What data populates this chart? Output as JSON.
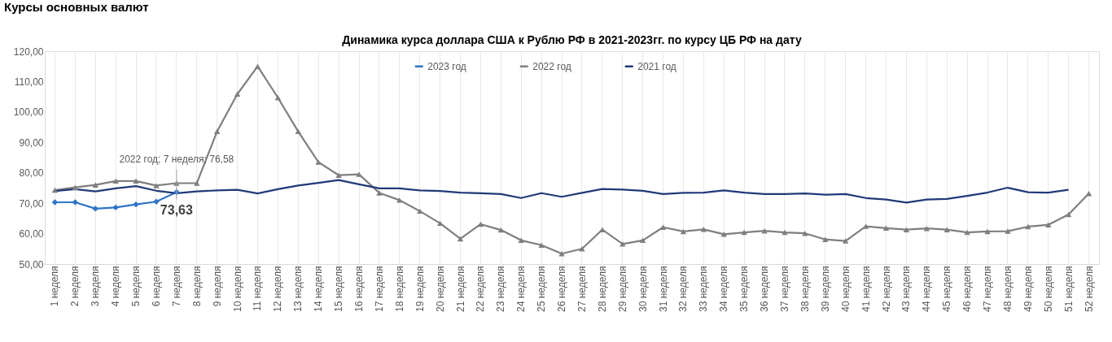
{
  "chart_data": {
    "type": "line",
    "title": "Динамика курса доллара США к Рублю РФ в 2021-2023гг. по курсу ЦБ РФ на дату",
    "annotations": [
      "Курсы основных валют",
      {
        "text": "2022 год; 7 неделя; 76,58",
        "x": "7 неделя",
        "y": 76.58
      }
    ],
    "categories": [
      "1 неделя",
      "2 неделя",
      "3 неделя",
      "4 неделя",
      "5 неделя",
      "6 неделя",
      "7 неделя",
      "8 неделя",
      "9 неделя",
      "10 неделя",
      "11 неделя",
      "12 неделя",
      "13 неделя",
      "14 неделя",
      "15 неделя",
      "16 неделя",
      "17 неделя",
      "18 неделя",
      "19 неделя",
      "20 неделя",
      "21 неделя",
      "22 неделя",
      "23 неделя",
      "24 неделя",
      "25 неделя",
      "26 неделя",
      "27 неделя",
      "28 неделя",
      "29 неделя",
      "30 неделя",
      "31 неделя",
      "32 неделя",
      "33 неделя",
      "34 неделя",
      "35 неделя",
      "36 неделя",
      "37 неделя",
      "38 неделя",
      "39 неделя",
      "40 неделя",
      "41 неделя",
      "42 неделя",
      "43 неделя",
      "44 неделя",
      "45 неделя",
      "46 неделя",
      "47 неделя",
      "48 неделя",
      "49 неделя",
      "50 неделя",
      "51 неделя",
      "52 неделя"
    ],
    "series": [
      {
        "name": "2023 год",
        "color": "#2e75c6",
        "marker": "diamond",
        "values": [
          70.3,
          70.3,
          68.2,
          68.6,
          69.6,
          70.5,
          73.63,
          null,
          null,
          null,
          null,
          null,
          null,
          null,
          null,
          null,
          null,
          null,
          null,
          null,
          null,
          null,
          null,
          null,
          null,
          null,
          null,
          null,
          null,
          null,
          null,
          null,
          null,
          null,
          null,
          null,
          null,
          null,
          null,
          null,
          null,
          null,
          null,
          null,
          null,
          null,
          null,
          null,
          null,
          null,
          null,
          null
        ],
        "value_labels": [
          null,
          null,
          null,
          null,
          null,
          null,
          "73,63",
          null,
          null,
          null,
          null,
          null,
          null,
          null,
          null,
          null,
          null,
          null,
          null,
          null,
          null,
          null,
          null,
          null,
          null,
          null,
          null,
          null,
          null,
          null,
          null,
          null,
          null,
          null,
          null,
          null,
          null,
          null,
          null,
          null,
          null,
          null,
          null,
          null,
          null,
          null,
          null,
          null,
          null,
          null,
          null,
          null
        ]
      },
      {
        "name": "2022 год",
        "color": "#7f7f7f",
        "marker": "triangle",
        "values": [
          74.3,
          75.2,
          76.0,
          77.3,
          77.3,
          75.8,
          76.58,
          76.6,
          93.6,
          105.9,
          115.0,
          104.7,
          93.6,
          83.5,
          79.2,
          79.5,
          73.4,
          71.0,
          67.4,
          63.4,
          58.3,
          63.1,
          61.2,
          57.8,
          56.2,
          53.4,
          55.0,
          61.3,
          56.6,
          57.8,
          62.1,
          60.7,
          61.4,
          59.8,
          60.4,
          60.9,
          60.4,
          60.1,
          58.1,
          57.6,
          62.4,
          61.8,
          61.3,
          61.7,
          61.3,
          60.4,
          60.7,
          60.8,
          62.3,
          62.9,
          66.3,
          73.2
        ]
      },
      {
        "name": "2021 год",
        "color": "#1f3a78",
        "marker": "none",
        "values": [
          74.0,
          74.6,
          73.9,
          74.9,
          75.6,
          74.1,
          73.3,
          73.9,
          74.2,
          74.4,
          73.2,
          74.6,
          75.8,
          76.7,
          77.6,
          76.2,
          74.9,
          74.9,
          74.2,
          74.0,
          73.5,
          73.3,
          73.0,
          71.7,
          73.3,
          72.1,
          73.4,
          74.7,
          74.5,
          74.1,
          73.0,
          73.4,
          73.5,
          74.2,
          73.5,
          73.0,
          73.0,
          73.2,
          72.8,
          73.0,
          71.7,
          71.2,
          70.2,
          71.2,
          71.4,
          72.4,
          73.5,
          75.1,
          73.6,
          73.5,
          74.4,
          null
        ]
      }
    ],
    "ylim": [
      50,
      120
    ],
    "yticks": [
      {
        "value": 50,
        "label": "50,00"
      },
      {
        "value": 60,
        "label": "60,00"
      },
      {
        "value": 70,
        "label": "70,00"
      },
      {
        "value": 80,
        "label": "80,00"
      },
      {
        "value": 90,
        "label": "90,00"
      },
      {
        "value": 100,
        "label": "100,00"
      },
      {
        "value": 110,
        "label": "110,00"
      },
      {
        "value": 120,
        "label": "120,00"
      }
    ],
    "grid": "x",
    "legend": "top",
    "line_style": "solid"
  }
}
